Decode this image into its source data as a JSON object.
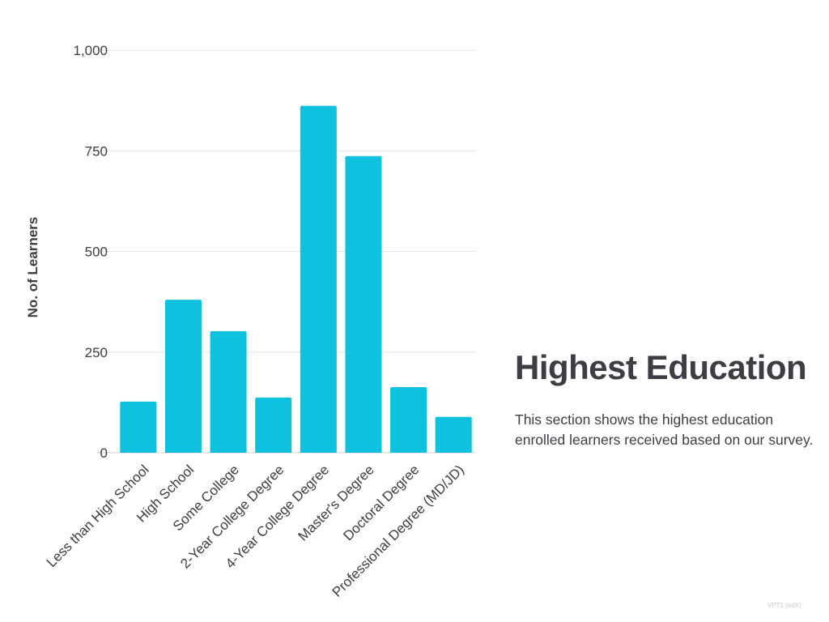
{
  "chart_data": {
    "type": "bar",
    "categories": [
      "Less than High School",
      "High School",
      "Some College",
      "2-Year College Degree",
      "4-Year College Degree",
      "Master's Degree",
      "Doctoral Degree",
      "Professional Degree (MD/JD)"
    ],
    "values": [
      127,
      380,
      302,
      137,
      862,
      737,
      163,
      89
    ],
    "xlabel": "",
    "ylabel": "No. of Learners",
    "ylim": [
      0,
      1000
    ],
    "yticks": [
      0,
      250,
      500,
      750,
      1000
    ],
    "ytick_labels": [
      "0",
      "250",
      "500",
      "750",
      "1,000"
    ],
    "grid": true,
    "legend": "none",
    "bar_color": "#0ec1df"
  },
  "panel": {
    "title": "Highest Education",
    "description": "This section shows the highest education enrolled learners received based on our survey."
  },
  "footer": {
    "text": "VPT1 (edX)"
  }
}
